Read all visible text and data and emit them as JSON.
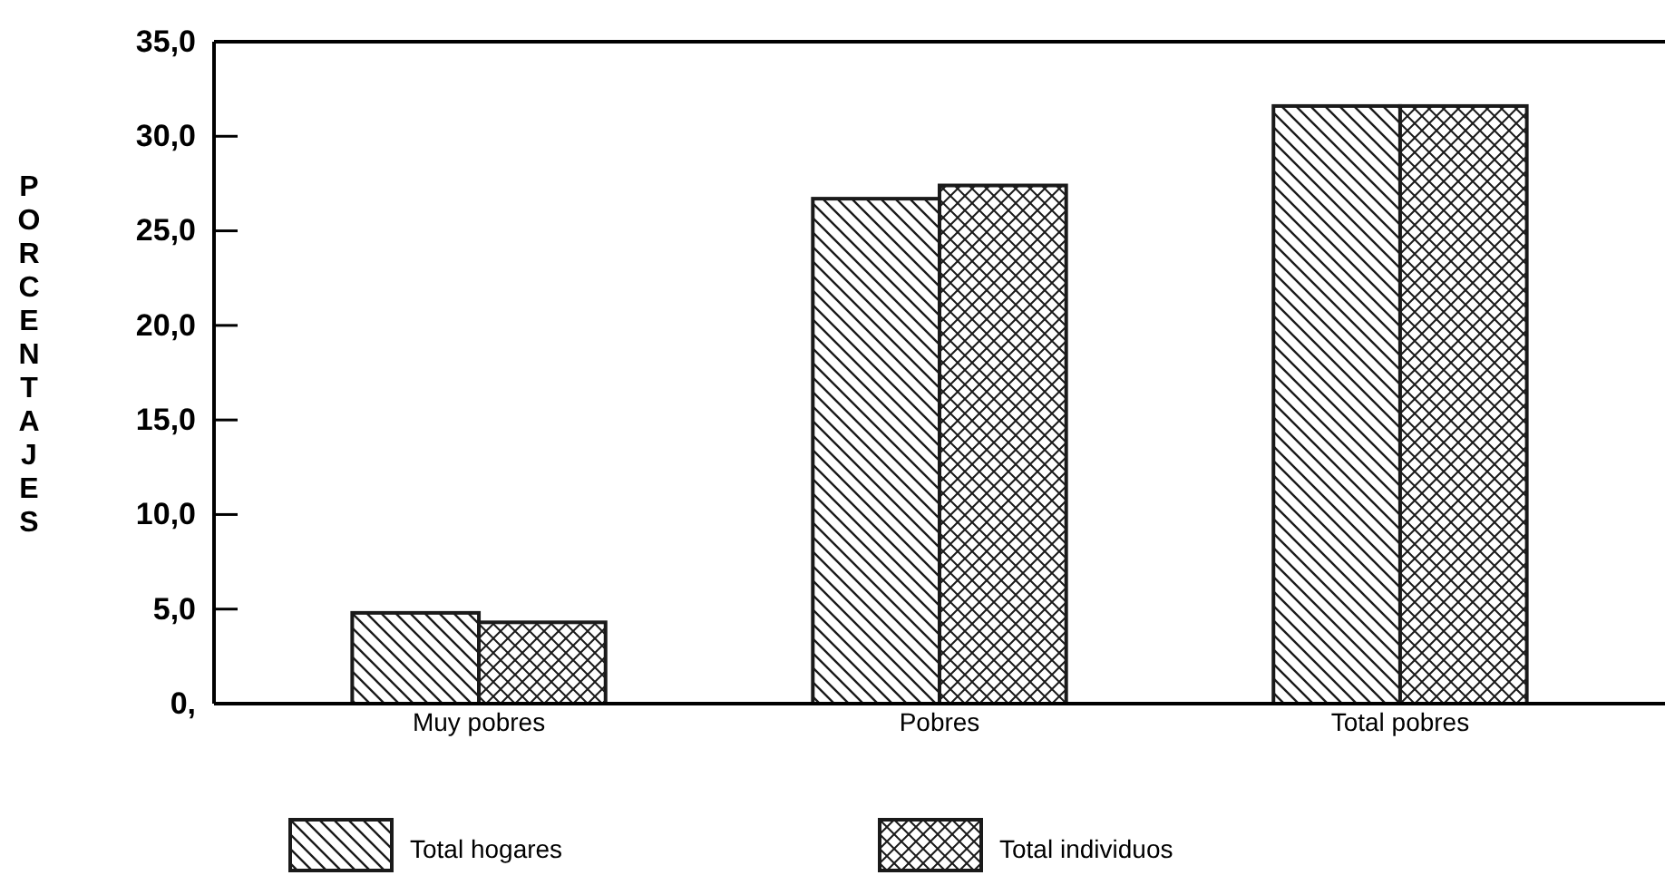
{
  "chart_data": {
    "type": "bar",
    "ylabel": "PORCENTAJES",
    "categories": [
      "Muy pobres",
      "Pobres",
      "Total pobres"
    ],
    "series": [
      {
        "name": "Total hogares",
        "color": "#1a1a1a",
        "values": [
          4.8,
          26.7,
          31.6
        ]
      },
      {
        "name": "Total individuos",
        "color": "#1a1a1a",
        "values": [
          4.3,
          27.4,
          31.6
        ]
      }
    ],
    "ylim": [
      0,
      35
    ],
    "yticks": [
      {
        "value": 0,
        "label": "0,"
      },
      {
        "value": 5,
        "label": "5,0"
      },
      {
        "value": 10,
        "label": "10,0"
      },
      {
        "value": 15,
        "label": "15,0"
      },
      {
        "value": 20,
        "label": "20,0"
      },
      {
        "value": 25,
        "label": "25,0"
      },
      {
        "value": 30,
        "label": "30,0"
      },
      {
        "value": 35,
        "label": "35,0"
      }
    ],
    "grid": false,
    "legend": "bottom"
  }
}
